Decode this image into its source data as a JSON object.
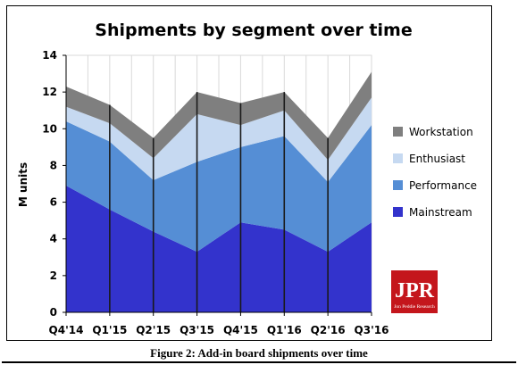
{
  "caption": "Figure 2: Add-in board shipments over time",
  "logo": {
    "text": "JPR",
    "subtext": "Jon Peddie Research",
    "color": "#c4161c"
  },
  "chart_data": {
    "type": "area",
    "stacked": true,
    "title": "Shipments by segment over time",
    "xlabel": "",
    "ylabel": "M units",
    "categories": [
      "Q4'14",
      "Q1'15",
      "Q2'15",
      "Q3'15",
      "Q4'15",
      "Q1'16",
      "Q2'16",
      "Q3'16"
    ],
    "x": [
      0,
      0.5,
      1,
      1.5,
      2,
      2.5,
      3,
      3.5,
      4,
      4.5,
      5,
      5.5,
      6,
      6.5,
      7
    ],
    "ylim": [
      0,
      14
    ],
    "yticks": [
      0,
      2,
      4,
      6,
      8,
      10,
      12,
      14
    ],
    "grid": "vertical",
    "legend_position": "right",
    "series": [
      {
        "name": "Mainstream",
        "color": "#3333cc",
        "values": [
          6.9,
          5.6,
          4.4,
          3.3,
          4.9,
          4.5,
          3.3,
          4.9
        ]
      },
      {
        "name": "Performance",
        "color": "#558ed5",
        "values": [
          3.5,
          3.7,
          2.8,
          4.9,
          4.1,
          5.1,
          3.8,
          5.3
        ]
      },
      {
        "name": "Enthusiast",
        "color": "#c6d9f1",
        "values": [
          0.8,
          1.0,
          1.2,
          2.6,
          1.2,
          1.4,
          1.2,
          1.5
        ]
      },
      {
        "name": "Workstation",
        "color": "#7f7f7f",
        "values": [
          1.1,
          1.0,
          1.1,
          1.2,
          1.2,
          1.0,
          1.2,
          1.4
        ]
      }
    ]
  }
}
